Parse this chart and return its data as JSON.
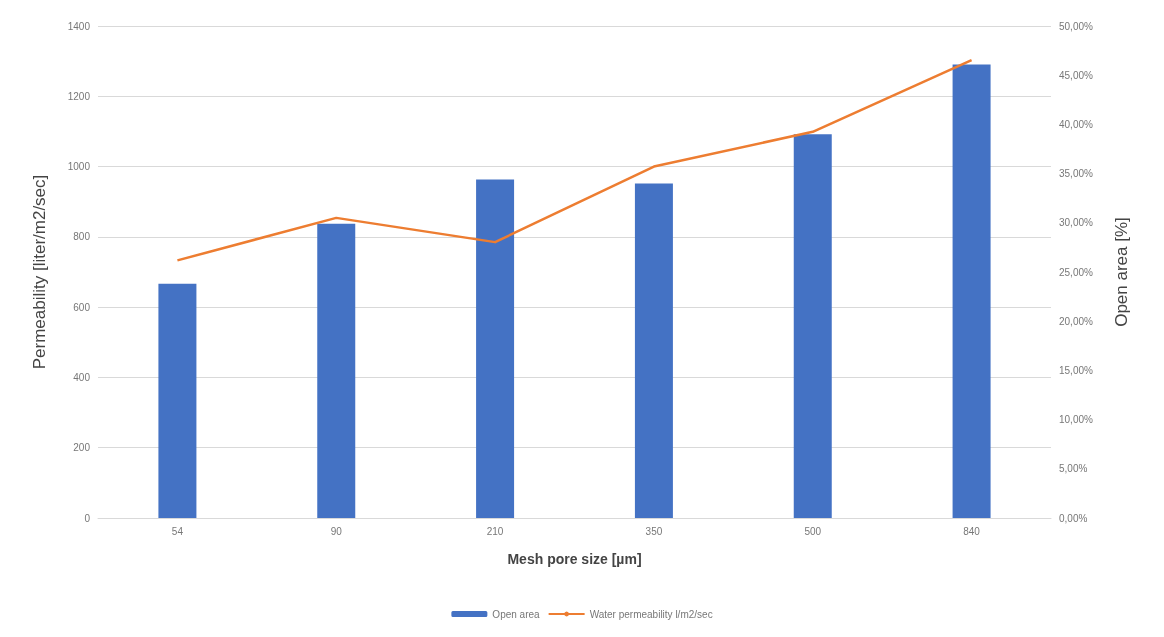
{
  "chart_data": {
    "type": "bar",
    "xlabel": "Mesh pore size [µm]",
    "ylabel": "Permeability [liter/m2/sec]",
    "y2label": "Open area [%]",
    "categories": [
      "54",
      "90",
      "210",
      "350",
      "500",
      "840"
    ],
    "series": [
      {
        "name": "Open area",
        "axis": "y2",
        "color": "#4472c4",
        "values": [
          23.8,
          29.9,
          34.4,
          34.0,
          39.0,
          46.1
        ]
      },
      {
        "name": "Water permeability l/m2/sec",
        "type": "line",
        "axis": "y",
        "color": "#ed7d31",
        "values": [
          733,
          854,
          785,
          1000,
          1099,
          1303
        ]
      }
    ],
    "ylim": [
      0,
      1400
    ],
    "yticks": [
      0,
      200,
      400,
      600,
      800,
      1000,
      1200,
      1400
    ],
    "y2lim": [
      0,
      50
    ],
    "y2ticks": [
      {
        "value": 0,
        "label": "0,00%"
      },
      {
        "value": 5,
        "label": "5,00%"
      },
      {
        "value": 10,
        "label": "10,00%"
      },
      {
        "value": 15,
        "label": "15,00%"
      },
      {
        "value": 20,
        "label": "20,00%"
      },
      {
        "value": 25,
        "label": "25,00%"
      },
      {
        "value": 30,
        "label": "30,00%"
      },
      {
        "value": 35,
        "label": "35,00%"
      },
      {
        "value": 40,
        "label": "40,00%"
      },
      {
        "value": 45,
        "label": "45,00%"
      },
      {
        "value": 50,
        "label": "50,00%"
      }
    ],
    "grid": "y",
    "legend": "bottom",
    "marker": "none",
    "line_style": "solid"
  }
}
